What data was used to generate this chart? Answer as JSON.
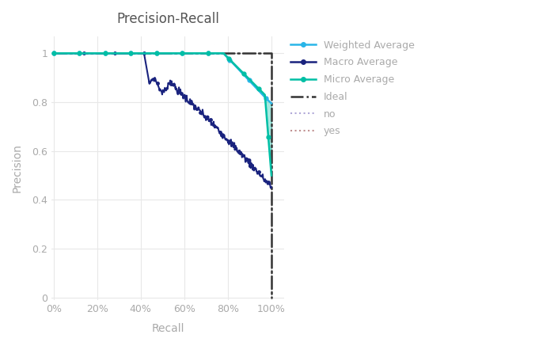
{
  "title": "Precision-Recall",
  "xlabel": "Recall",
  "ylabel": "Precision",
  "xticks": [
    0,
    0.2,
    0.4,
    0.6,
    0.8,
    1.0
  ],
  "yticks": [
    0,
    0.2,
    0.4,
    0.6,
    0.8,
    1.0
  ],
  "weighted_color": "#29b5e8",
  "macro_color": "#1a237e",
  "micro_color": "#00bfa5",
  "fill_color": "#00bfa5",
  "ideal_color": "#333333",
  "no_color": "#b0a8d8",
  "yes_color": "#c09090",
  "title_color": "#555555",
  "tick_color": "#aaaaaa",
  "label_color": "#aaaaaa",
  "grid_color": "#e8e8e8"
}
